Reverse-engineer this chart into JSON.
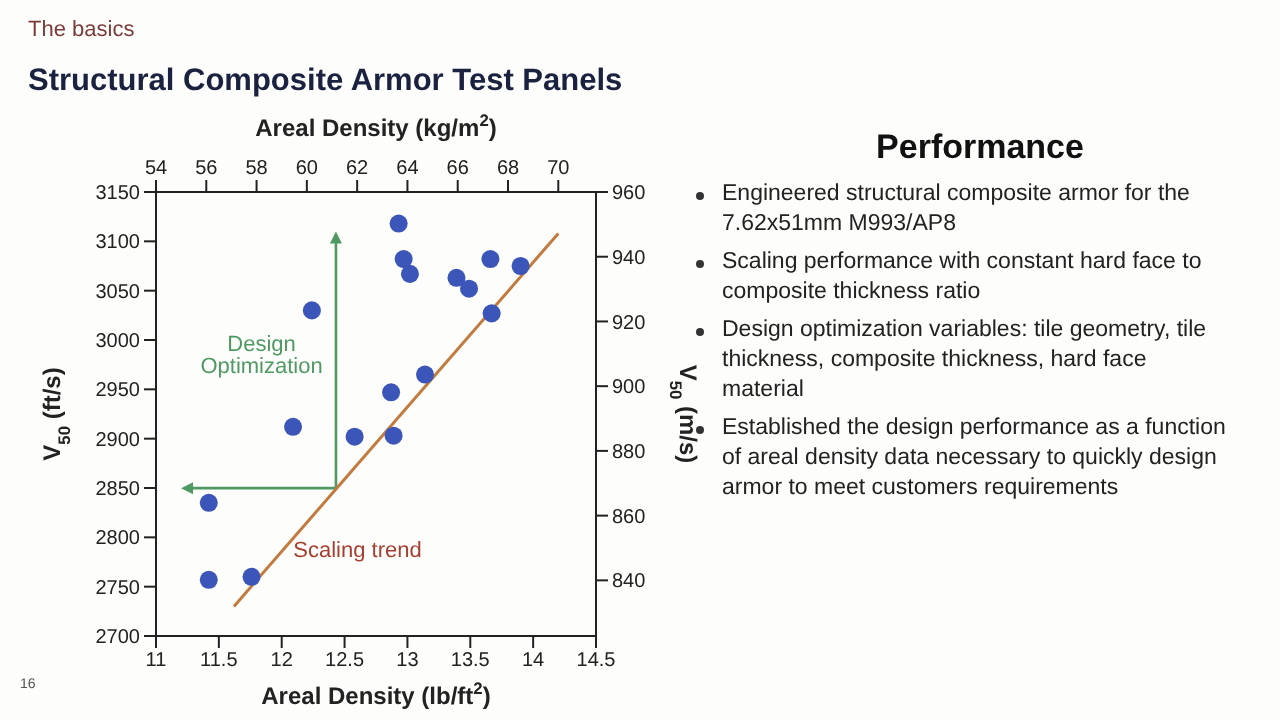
{
  "chart_data": {
    "type": "scatter",
    "title": "Structural Composite Armor Test Panels",
    "subtitle": "The basics",
    "xlabel": "Areal Density (lb/ft$^{2}$)",
    "x2label": "Areal Density (kg/m$^{2}$)",
    "ylabel": "V$_{50}$ (ft/s)",
    "y2label": "V$_{50}$ (m/s)",
    "xlim": [
      11,
      14.5
    ],
    "xticks": [
      11,
      11.5,
      12,
      12.5,
      13,
      13.5,
      14,
      14.5
    ],
    "ylim": [
      2700,
      3150
    ],
    "yticks": [
      2700,
      2750,
      2800,
      2850,
      2900,
      2950,
      3000,
      3050,
      3100,
      3150
    ],
    "x2lim": [
      54,
      71.5
    ],
    "x2ticks": [
      54,
      56,
      58,
      60,
      62,
      64,
      66,
      68,
      70
    ],
    "y2lim": [
      822.8,
      960
    ],
    "y2ticks": [
      840,
      860,
      880,
      900,
      920,
      940,
      960
    ],
    "marker": "circle",
    "series": [
      {
        "color": "#3b55b8",
        "x": [
          11.42,
          11.42,
          11.76,
          12.09,
          12.24,
          12.58,
          12.87,
          12.89,
          13.14,
          12.93,
          12.97,
          13.02,
          13.39,
          13.49,
          13.66,
          13.67,
          13.9
        ],
        "values": [
          2757,
          2835,
          2760,
          2912,
          3030,
          2902,
          2947,
          2903,
          2965,
          3118,
          3082,
          3067,
          3063,
          3052,
          3082,
          3027,
          3075
        ]
      },
      {
        "type": "line",
        "marker": "none",
        "color": "#c27a3e",
        "x": [
          11.62,
          14.2
        ],
        "values": [
          2730,
          3108
        ]
      }
    ],
    "annotations": [
      "Design Optimization",
      "Scaling trend",
      "Performance",
      "Engineered structural composite armor for the 7.62x51mm M993/AP8",
      "Scaling performance with constant hard face to composite thickness ratio",
      "Design optimization variables: tile geometry, tile thickness, composite thickness, hard face material",
      "Established the design performance as a function of areal density data necessary to quickly design armor to meet customers requirements",
      "16"
    ]
  }
}
